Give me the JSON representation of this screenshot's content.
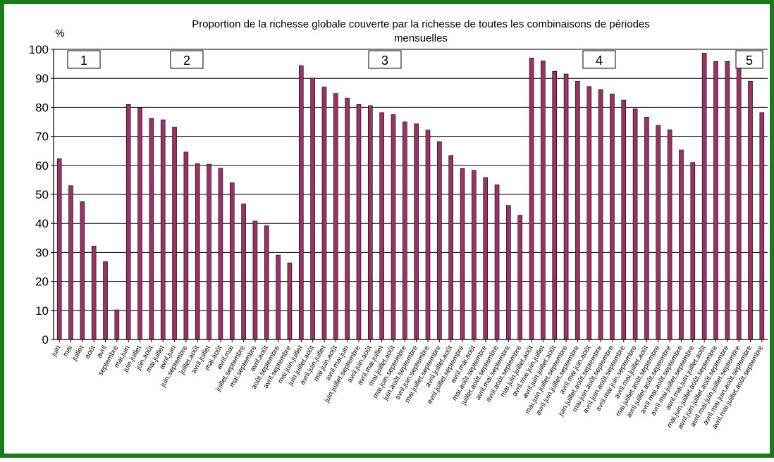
{
  "chart_data": {
    "type": "bar",
    "title": "Proportion de la richesse globale couverte par la richesse de toutes les combinaisons de périodes mensuelles",
    "title_lines": [
      "Proportion de la richesse globale couverte par la richesse de toutes les combinaisons de périodes",
      "mensuelles"
    ],
    "ylabel": "%",
    "ylim": [
      0,
      100
    ],
    "yticks": [
      0,
      10,
      20,
      30,
      40,
      50,
      60,
      70,
      80,
      90,
      100
    ],
    "grid": true,
    "bar_color": "#993366",
    "group_labels": [
      "1",
      "2",
      "3",
      "4",
      "5"
    ],
    "categories": [
      "juin",
      "mai",
      "juillet",
      "août",
      "avril",
      "septembre",
      "mai.juin",
      "juin.juillet",
      "juin.août",
      "mai.juillet",
      "avril.juin",
      "juin.septembre",
      "juillet.août",
      "avril.juillet",
      "mai.août",
      "avril.mai",
      "juillet.septembre",
      "mai.septembre",
      "avril.août",
      "août.septembre",
      "avril.septembre",
      "mai.juin.juillet",
      "juin.juillet.août",
      "avril.juin.juillet",
      "mai.juin.août",
      "avril.mai.juin",
      "juin.juillet.septembre",
      "avril.juin.août",
      "avril.mai.juillet",
      "mai.juillet.août",
      "mai.juin.septembre",
      "juin.août.septembre",
      "avril.juin.septembre",
      "mai.juillet.septembre",
      "avril.juillet.août",
      "avril.juillet.septembre",
      "avril.mai.août",
      "mai.août.septembre",
      "juillet.août.septembre",
      "avril.mai.septembre",
      "avril.août.septembre",
      "mai.juin.juillet.août",
      "avril.mai.juin.juillet",
      "avril.juin.juillet.août",
      "mai.juin.juillet.septembre",
      "avril.juin.juillet.septembre",
      "avril.mai.juin.août",
      "juin.juillet.août.septembre",
      "mai.juin.août.septembre",
      "avril.juin.août.septembre",
      "avril.mai.juin.septembre",
      "avril.mai.juillet.août",
      "mai.juillet.août.septembre",
      "avril.juillet.août.septembre",
      "avril.mai.août.septembre",
      "avril.mai.juillet.septembre",
      "avril.mai.juin.juillet.août",
      "mai.juin.juillet.août.septembre",
      "avril.juin.juillet.août.septembre",
      "avril.mai.juin.juillet.septembre",
      "avril.mai.juin.août.septembre",
      "avril.mai.juillet.août.septembre"
    ],
    "values": [
      62.3,
      53,
      47.5,
      32.2,
      26.8,
      10.2,
      81,
      79.8,
      76.2,
      75.7,
      73.2,
      64.6,
      60.6,
      60.4,
      59,
      54,
      46.7,
      40.8,
      39.2,
      29.1,
      26.4,
      94.4,
      90.1,
      87,
      84.8,
      83.2,
      81,
      80.6,
      78.2,
      77.5,
      75,
      74.3,
      72.2,
      68.2,
      63.4,
      58.9,
      58.3,
      55.8,
      53.3,
      46.2,
      42.8,
      97,
      96,
      92.4,
      91.5,
      89,
      87.2,
      86.1,
      84.6,
      82.5,
      79.5,
      76.6,
      73.8,
      72.3,
      65.3,
      61,
      98.7,
      95.8,
      95.8,
      94,
      89,
      78.2
    ]
  }
}
